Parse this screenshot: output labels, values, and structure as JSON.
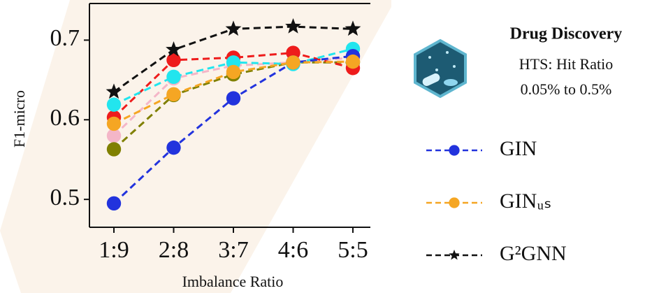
{
  "chart_data": {
    "type": "line",
    "y_label": "F1-micro",
    "x_label": "Imbalance Ratio",
    "categories": [
      "1:9",
      "2:8",
      "3:7",
      "4:6",
      "5:5"
    ],
    "ylim": [
      0.465,
      0.746
    ],
    "yticks": [
      0.5,
      0.6,
      0.7
    ],
    "series": [
      {
        "color": "#f4b6c8",
        "marker": "o",
        "values": [
          0.58,
          0.652,
          0.668,
          0.672,
          0.678
        ]
      },
      {
        "color": "#808000",
        "marker": "o",
        "values": [
          0.563,
          0.631,
          0.657,
          0.672,
          0.672
        ]
      },
      {
        "color": "#ee1c1c",
        "marker": "o",
        "values": [
          0.603,
          0.675,
          0.678,
          0.684,
          0.665
        ]
      },
      {
        "color": "#22e5ee",
        "marker": "o",
        "values": [
          0.619,
          0.654,
          0.672,
          0.67,
          0.689
        ]
      },
      {
        "name": "GIN",
        "color": "#2233dd",
        "marker": "o",
        "values": [
          0.495,
          0.565,
          0.627,
          0.672,
          0.68
        ]
      },
      {
        "name": "GINᵤₛ",
        "color": "#f5a623",
        "marker": "o",
        "values": [
          0.595,
          0.632,
          0.66,
          0.672,
          0.673
        ]
      },
      {
        "name": "G²GNN",
        "color": "#111111",
        "marker": "star",
        "values": [
          0.635,
          0.688,
          0.714,
          0.717,
          0.714
        ]
      }
    ],
    "side_title": "Drug Discovery",
    "side_lines": [
      "HTS: Hit Ratio",
      "0.05% to 0.5%"
    ]
  }
}
